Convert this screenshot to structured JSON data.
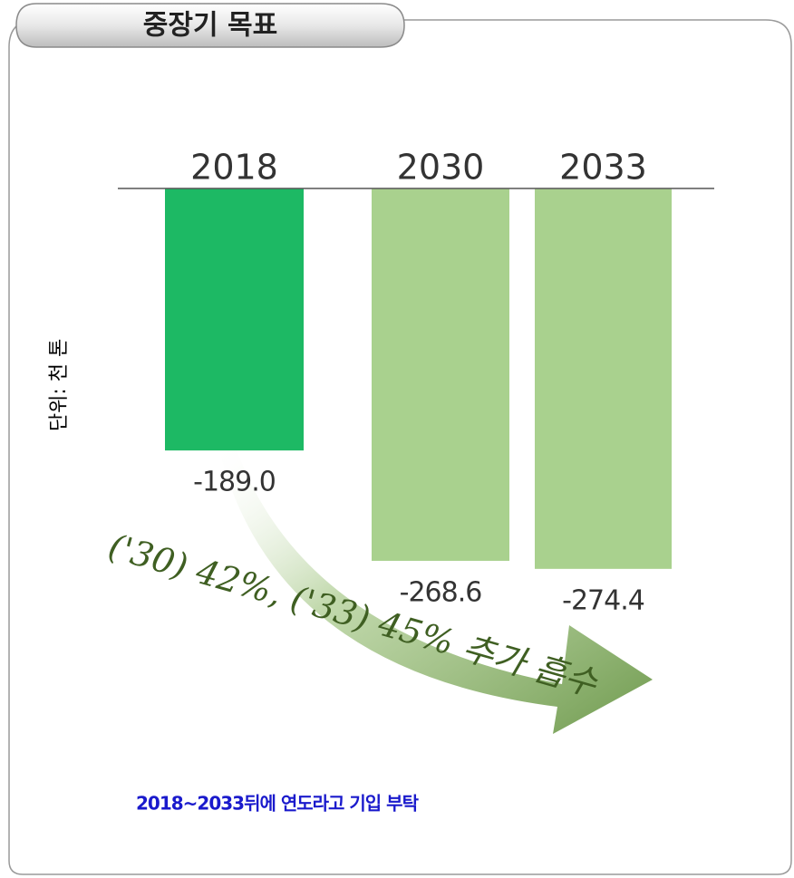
{
  "chart_data": {
    "type": "bar",
    "title": "중장기 목표",
    "y_label": "단위: 천 톤",
    "categories": [
      "2018",
      "2030",
      "2033"
    ],
    "values": [
      -189.0,
      -268.6,
      -274.4
    ],
    "value_labels": [
      "-189.0",
      "-268.6",
      "-274.4"
    ],
    "colors": [
      "#1db964",
      "#a9d18e",
      "#a9d18e"
    ],
    "ylim": [
      -300,
      0
    ],
    "annotation": "('30) 42%, ('33) 45% 추가 흡수",
    "note": "2018~2033뒤에 연도라고 기입 부탁"
  }
}
